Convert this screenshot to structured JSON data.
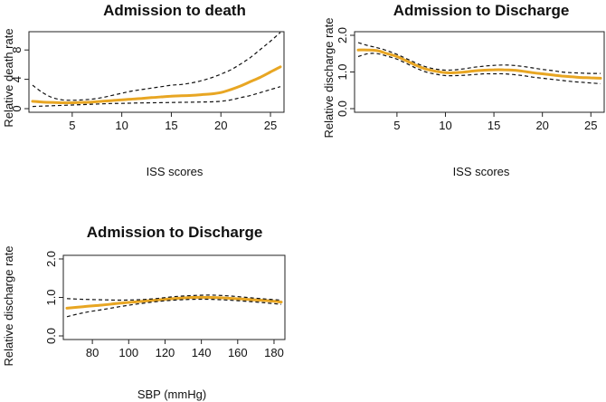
{
  "colors": {
    "fit": "#E8A623",
    "ci": "#111111"
  },
  "chart_data": [
    {
      "type": "line",
      "title": "Admission to death",
      "xlabel": "ISS scores",
      "ylabel": "Relative death rate",
      "xlim": [
        1,
        26
      ],
      "ylim": [
        0,
        10
      ],
      "xticks": [
        5,
        10,
        15,
        20,
        25
      ],
      "yticks": [
        0,
        4,
        8
      ],
      "x": [
        1,
        2,
        3,
        4,
        5,
        6,
        7,
        8,
        9,
        10,
        11,
        12,
        13,
        14,
        15,
        16,
        17,
        18,
        19,
        20,
        21,
        22,
        23,
        24,
        25,
        26
      ],
      "series": [
        {
          "name": "estimate",
          "values": [
            1.0,
            0.9,
            0.85,
            0.8,
            0.8,
            0.85,
            0.9,
            1.0,
            1.1,
            1.2,
            1.3,
            1.4,
            1.5,
            1.6,
            1.7,
            1.75,
            1.8,
            1.9,
            2.0,
            2.2,
            2.6,
            3.1,
            3.7,
            4.3,
            5.0,
            5.7
          ]
        },
        {
          "name": "upper",
          "values": [
            3.2,
            2.2,
            1.5,
            1.2,
            1.15,
            1.2,
            1.3,
            1.5,
            1.8,
            2.1,
            2.4,
            2.6,
            2.8,
            3.0,
            3.2,
            3.3,
            3.5,
            3.8,
            4.2,
            4.7,
            5.3,
            6.1,
            7.0,
            8.1,
            9.2,
            10.4
          ]
        },
        {
          "name": "lower",
          "values": [
            0.3,
            0.35,
            0.4,
            0.45,
            0.5,
            0.55,
            0.6,
            0.65,
            0.7,
            0.72,
            0.75,
            0.78,
            0.8,
            0.82,
            0.84,
            0.86,
            0.88,
            0.9,
            0.93,
            1.0,
            1.2,
            1.5,
            1.8,
            2.2,
            2.6,
            3.0
          ]
        }
      ]
    },
    {
      "type": "line",
      "title": "Admission to Discharge",
      "xlabel": "ISS scores",
      "ylabel": "Relative discharge rate",
      "xlim": [
        1,
        26
      ],
      "ylim": [
        0,
        2
      ],
      "xticks": [
        5,
        10,
        15,
        20,
        25
      ],
      "yticks": [
        0.0,
        1.0,
        2.0
      ],
      "ytick_labels": [
        "0.0",
        "1.0",
        "2.0"
      ],
      "x": [
        1,
        2,
        3,
        4,
        5,
        6,
        7,
        8,
        9,
        10,
        11,
        12,
        13,
        14,
        15,
        16,
        17,
        18,
        19,
        20,
        21,
        22,
        23,
        24,
        25,
        26
      ],
      "series": [
        {
          "name": "estimate",
          "values": [
            1.6,
            1.6,
            1.58,
            1.5,
            1.42,
            1.3,
            1.18,
            1.08,
            1.02,
            0.98,
            0.98,
            1.0,
            1.03,
            1.05,
            1.06,
            1.06,
            1.05,
            1.02,
            0.98,
            0.95,
            0.92,
            0.89,
            0.87,
            0.85,
            0.84,
            0.83
          ]
        },
        {
          "name": "upper",
          "values": [
            1.8,
            1.72,
            1.66,
            1.58,
            1.48,
            1.36,
            1.24,
            1.14,
            1.08,
            1.05,
            1.06,
            1.09,
            1.13,
            1.16,
            1.18,
            1.19,
            1.18,
            1.15,
            1.11,
            1.07,
            1.04,
            1.0,
            0.98,
            0.97,
            0.96,
            0.96
          ]
        },
        {
          "name": "lower",
          "values": [
            1.42,
            1.5,
            1.5,
            1.43,
            1.35,
            1.23,
            1.1,
            1.0,
            0.94,
            0.9,
            0.9,
            0.91,
            0.93,
            0.95,
            0.95,
            0.95,
            0.93,
            0.9,
            0.86,
            0.83,
            0.8,
            0.77,
            0.74,
            0.72,
            0.7,
            0.68
          ]
        }
      ]
    },
    {
      "type": "line",
      "title": "Admission to Discharge",
      "xlabel": "SBP (mmHg)",
      "ylabel": "Relative discharge rate",
      "xlim": [
        66,
        184
      ],
      "ylim": [
        0,
        2
      ],
      "xticks": [
        80,
        100,
        120,
        140,
        160,
        180
      ],
      "yticks": [
        0.0,
        1.0,
        2.0
      ],
      "ytick_labels": [
        "0.0",
        "1.0",
        "2.0"
      ],
      "x": [
        66,
        75,
        85,
        95,
        105,
        115,
        125,
        135,
        145,
        155,
        165,
        175,
        184
      ],
      "series": [
        {
          "name": "estimate",
          "values": [
            0.72,
            0.76,
            0.8,
            0.85,
            0.89,
            0.93,
            0.97,
            1.0,
            1.0,
            0.98,
            0.95,
            0.92,
            0.88
          ]
        },
        {
          "name": "upper",
          "values": [
            0.97,
            0.95,
            0.94,
            0.93,
            0.94,
            0.97,
            1.02,
            1.05,
            1.06,
            1.04,
            1.0,
            0.96,
            0.93
          ]
        },
        {
          "name": "lower",
          "values": [
            0.5,
            0.6,
            0.68,
            0.76,
            0.83,
            0.89,
            0.93,
            0.95,
            0.95,
            0.93,
            0.9,
            0.86,
            0.82
          ]
        }
      ]
    }
  ]
}
